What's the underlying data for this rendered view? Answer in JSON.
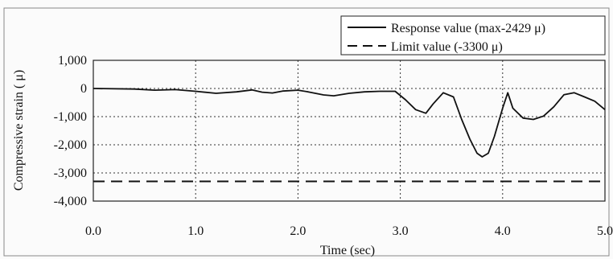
{
  "chart_data": {
    "type": "line",
    "xlabel": "Time (sec)",
    "ylabel": "Compressive strain ( μ)",
    "xlim": [
      0.0,
      5.0
    ],
    "ylim": [
      -4000,
      1000
    ],
    "x_ticks": [
      "0.0",
      "1.0",
      "2.0",
      "3.0",
      "4.0",
      "5.0"
    ],
    "y_ticks": [
      "1,000",
      "0",
      "-1,000",
      "-2,000",
      "-3,000",
      "-4,000"
    ],
    "grid": true,
    "legend_position": "top-right",
    "series": [
      {
        "name": "Response value (max-2429 μ)",
        "style": "solid",
        "color": "#111111",
        "x": [
          0.0,
          0.4,
          0.6,
          0.8,
          1.0,
          1.2,
          1.4,
          1.55,
          1.65,
          1.75,
          1.85,
          2.0,
          2.1,
          2.25,
          2.35,
          2.5,
          2.65,
          2.8,
          2.95,
          3.05,
          3.15,
          3.25,
          3.32,
          3.42,
          3.52,
          3.6,
          3.68,
          3.75,
          3.8,
          3.86,
          3.92,
          4.0,
          4.05,
          4.1,
          4.2,
          4.3,
          4.4,
          4.5,
          4.6,
          4.7,
          4.8,
          4.9,
          5.0
        ],
        "y": [
          0,
          -20,
          -60,
          -40,
          -100,
          -170,
          -120,
          -50,
          -130,
          -160,
          -90,
          -60,
          -120,
          -230,
          -260,
          -170,
          -120,
          -100,
          -100,
          -400,
          -750,
          -880,
          -550,
          -150,
          -300,
          -1100,
          -1800,
          -2300,
          -2429,
          -2300,
          -1700,
          -700,
          -150,
          -700,
          -1050,
          -1100,
          -980,
          -650,
          -220,
          -150,
          -300,
          -450,
          -750
        ]
      },
      {
        "name": "Limit value (-3300 μ)",
        "style": "dashed",
        "color": "#111111",
        "x": [
          0.0,
          5.0
        ],
        "y": [
          -3300,
          -3300
        ]
      }
    ]
  }
}
